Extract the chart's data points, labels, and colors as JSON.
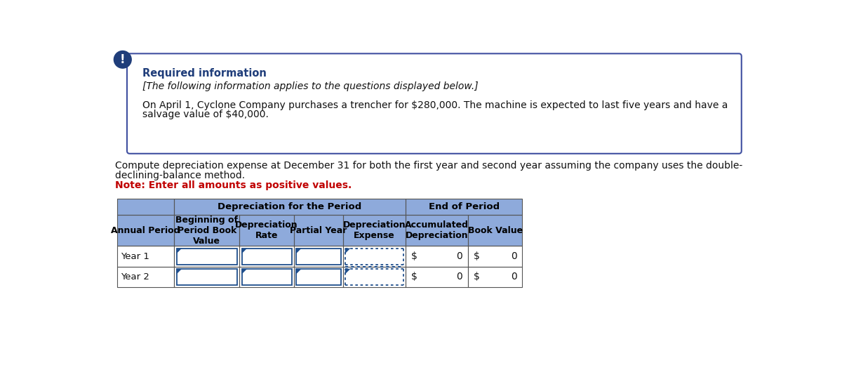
{
  "bg_color": "#ffffff",
  "info_box": {
    "border_color": "#3f4fa0",
    "bg_color": "#ffffff",
    "exclamation_bg": "#1f3d7a",
    "exclamation_text": "!",
    "title": "Required information",
    "title_color": "#1f3d7a",
    "subtitle": "[The following information applies to the questions displayed below.]",
    "body_line1": "On April 1, Cyclone Company purchases a trencher for $280,000. The machine is expected to last five years and have a",
    "body_line2": "salvage value of $40,000."
  },
  "question_line1": "Compute depreciation expense at December 31 for both the first year and second year assuming the company uses the double-",
  "question_line2": "declining-balance method.",
  "note_text": "Note: Enter all amounts as positive values.",
  "note_color": "#c00000",
  "table": {
    "header_bg": "#8eaadb",
    "header_text_color": "#000000",
    "border_color": "#555555",
    "col_headers": [
      "Annual Period",
      "Beginning of\nPeriod Book\nValue",
      "Depreciation\nRate",
      "Partial Year",
      "Depreciation\nExpense",
      "Accumulated\nDepreciation",
      "Book Value"
    ],
    "rows": [
      {
        "label": "Year 1",
        "acc_dep_prefix": "$",
        "acc_dep": "0",
        "bv_prefix": "$",
        "bv": "0"
      },
      {
        "label": "Year 2",
        "acc_dep_prefix": "$",
        "acc_dep": "0",
        "bv_prefix": "$",
        "bv": "0"
      }
    ],
    "input_border_color": "#1f4e8c",
    "dotted_border_color": "#1f4e8c"
  }
}
